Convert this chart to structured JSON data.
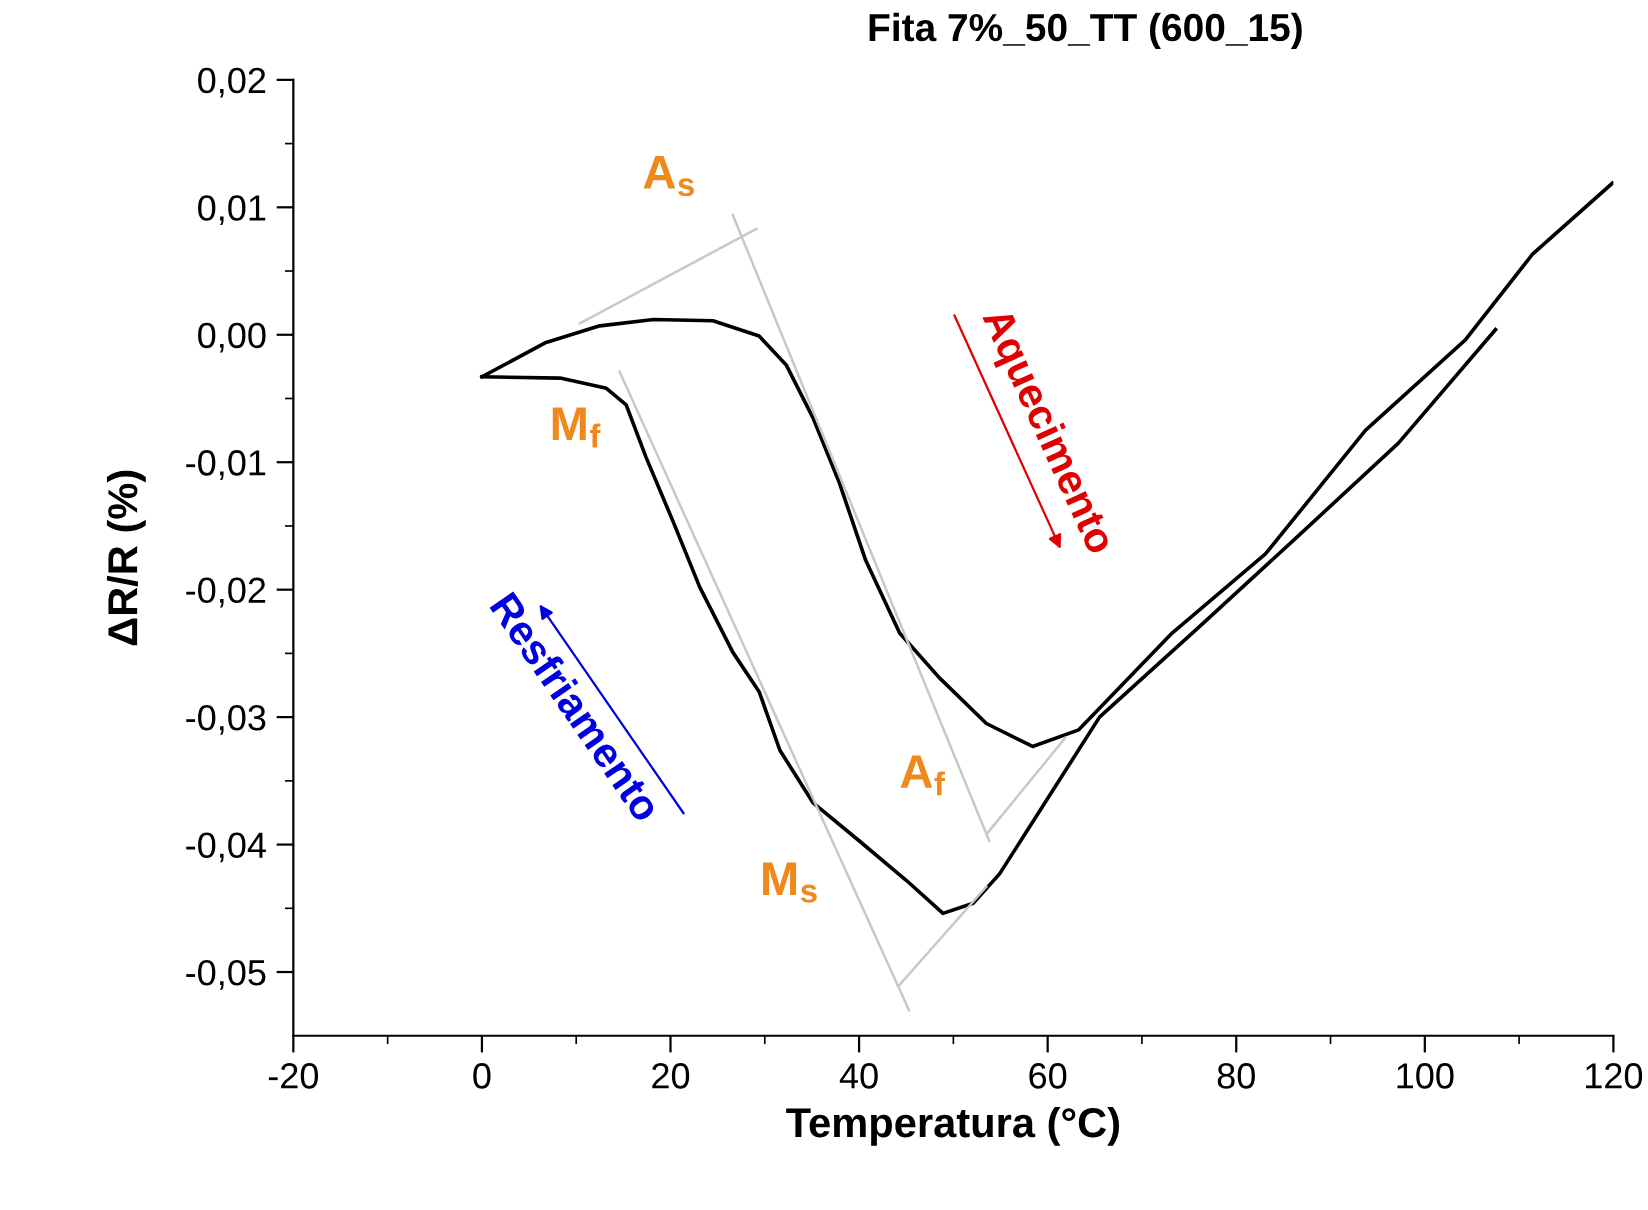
{
  "chart_data": {
    "type": "line",
    "title": "Fita 7%_50_TT (600_15)",
    "xlabel": "Temperatura (°C)",
    "ylabel": "ΔR/R (%)",
    "xlim": [
      -20,
      120
    ],
    "ylim": [
      -0.055,
      0.02
    ],
    "xticks": [
      -20,
      {
        "value": -10,
        "label": null
      },
      0,
      {
        "value": 10,
        "label": null
      },
      20,
      {
        "value": 30,
        "label": null
      },
      40,
      {
        "value": 50,
        "label": null
      },
      60,
      {
        "value": 70,
        "label": null
      },
      80,
      {
        "value": 90,
        "label": null
      },
      100,
      {
        "value": 110,
        "label": null
      },
      120
    ],
    "yticks": [
      {
        "value": -0.05,
        "label": "-0,05"
      },
      {
        "value": -0.045,
        "label": null
      },
      {
        "value": -0.04,
        "label": "-0,04"
      },
      {
        "value": -0.035,
        "label": null
      },
      {
        "value": -0.03,
        "label": "-0,03"
      },
      {
        "value": -0.025,
        "label": null
      },
      {
        "value": -0.02,
        "label": "-0,02"
      },
      {
        "value": -0.015,
        "label": null
      },
      {
        "value": -0.01,
        "label": "-0,01"
      },
      {
        "value": -0.005,
        "label": null
      },
      {
        "value": 0.0,
        "label": "0,00"
      },
      {
        "value": 0.005,
        "label": null
      },
      {
        "value": 0.01,
        "label": "0,01"
      },
      {
        "value": 0.015,
        "label": null
      },
      {
        "value": 0.02,
        "label": "0,02"
      }
    ],
    "grid": false,
    "legend": false,
    "marker": "none",
    "line_style": "solid",
    "series": [
      {
        "color": "#000000",
        "x": [
          0,
          6.8,
          12.5,
          18.2,
          24.5,
          29.4,
          32.3,
          35.1,
          37.9,
          40.7,
          44.3,
          48.5,
          53.5,
          58.4,
          63.3,
          73.2,
          83.1,
          93.7,
          104.3,
          111.4,
          119.9
        ],
        "values": [
          -0.0033,
          -0.0006,
          0.0007,
          0.0012,
          0.0011,
          -0.0001,
          -0.0024,
          -0.0065,
          -0.0116,
          -0.0177,
          -0.0234,
          -0.0269,
          -0.0305,
          -0.0323,
          -0.031,
          -0.0234,
          -0.0172,
          -0.0075,
          -0.0004,
          0.0063,
          0.0119
        ]
      },
      {
        "color": "#000000",
        "x": [
          0,
          8.3,
          13.2,
          15.3,
          17.4,
          20.3,
          23.1,
          26.6,
          29.4,
          31.6,
          35.1,
          40,
          45,
          48.9,
          52.1,
          54.9,
          65.5,
          76.1,
          86.7,
          97.2,
          107.5
        ],
        "values": [
          -0.0033,
          -0.0034,
          -0.0042,
          -0.0055,
          -0.0096,
          -0.0147,
          -0.0198,
          -0.0249,
          -0.028,
          -0.0326,
          -0.0367,
          -0.0397,
          -0.0428,
          -0.0454,
          -0.0446,
          -0.0423,
          -0.03,
          -0.0229,
          -0.0157,
          -0.0085,
          0.0004
        ]
      },
      {
        "color": "#c8c8c8",
        "x": [
          10.4,
          29.1
        ],
        "values": [
          0.0009,
          0.0083
        ]
      },
      {
        "color": "#c8c8c8",
        "x": [
          26.6,
          53.8
        ],
        "values": [
          0.0094,
          -0.0397
        ]
      },
      {
        "color": "#c8c8c8",
        "x": [
          53.5,
          61.9
        ],
        "values": [
          -0.0392,
          -0.0316
        ]
      },
      {
        "color": "#c8c8c8",
        "x": [
          14.6,
          45.3
        ],
        "values": [
          -0.0029,
          -0.053
        ]
      },
      {
        "color": "#c8c8c8",
        "x": [
          44.3,
          53.5
        ],
        "values": [
          -0.051,
          -0.0433
        ]
      }
    ],
    "annotations": [
      "A$_{s}$",
      "M$_{f}$",
      "A$_{f}$",
      "M$_{s}$",
      "Aquecimento",
      "Resfriamento"
    ]
  }
}
